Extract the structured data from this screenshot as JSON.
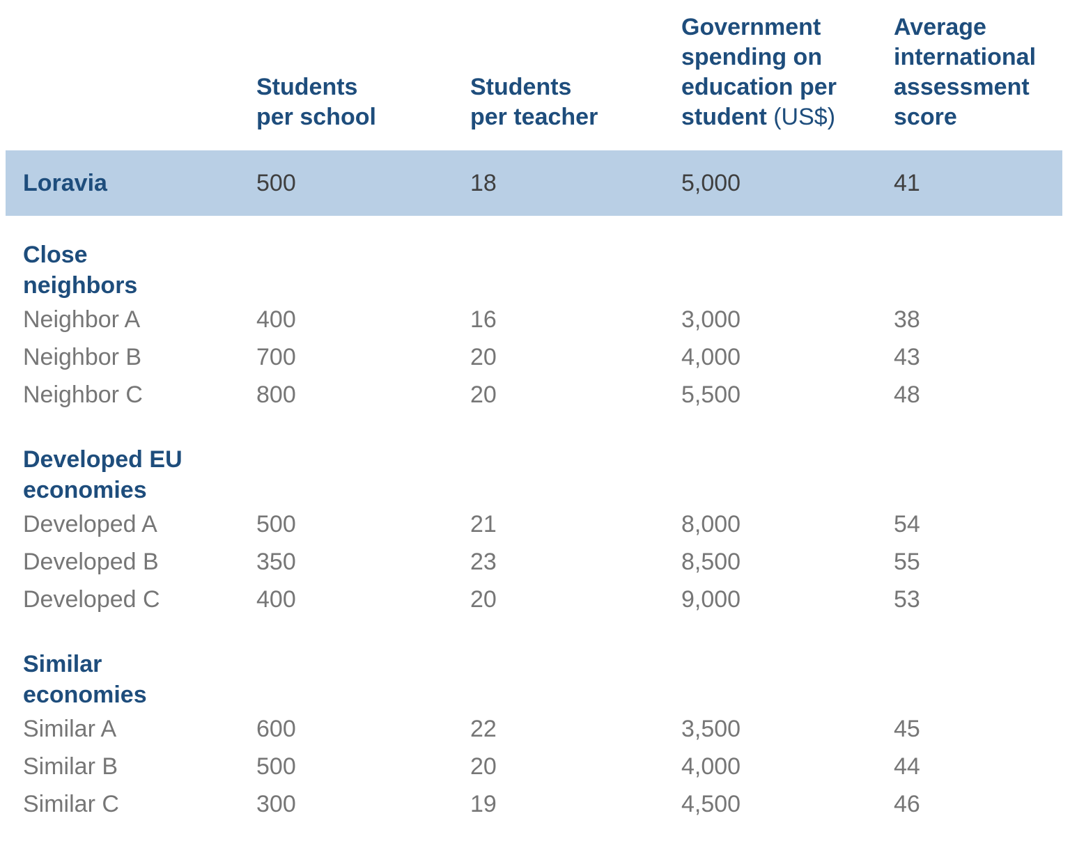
{
  "colors": {
    "navy_text": "#1e4d7c",
    "gray_text": "#767676",
    "highlight_row_bg": "#b9cfe5",
    "highlight_value_text": "#3f3f3f",
    "page_bg": "#ffffff"
  },
  "table": {
    "header": {
      "students_per_school": "Students\nper school",
      "students_per_teacher": "Students\nper teacher",
      "gov_spending_bold": "Government\nspending on\neducation per\nstudent",
      "gov_spending_unit": " (US$)",
      "assessment_score": "Average\ninternational\nassessment\nscore"
    },
    "highlight_row": {
      "label": "Loravia",
      "values": [
        "500",
        "18",
        "5,000",
        "41"
      ]
    },
    "sections": [
      {
        "title": "Close\nneighbors",
        "rows": [
          {
            "label": "Neighbor A",
            "values": [
              "400",
              "16",
              "3,000",
              "38"
            ]
          },
          {
            "label": "Neighbor B",
            "values": [
              "700",
              "20",
              "4,000",
              "43"
            ]
          },
          {
            "label": "Neighbor C",
            "values": [
              "800",
              "20",
              "5,500",
              "48"
            ]
          }
        ]
      },
      {
        "title": "Developed EU\neconomies",
        "rows": [
          {
            "label": "Developed A",
            "values": [
              "500",
              "21",
              "8,000",
              "54"
            ]
          },
          {
            "label": "Developed B",
            "values": [
              "350",
              "23",
              "8,500",
              "55"
            ]
          },
          {
            "label": "Developed C",
            "values": [
              "400",
              "20",
              "9,000",
              "53"
            ]
          }
        ]
      },
      {
        "title": "Similar\neconomies",
        "rows": [
          {
            "label": "Similar A",
            "values": [
              "600",
              "22",
              "3,500",
              "45"
            ]
          },
          {
            "label": "Similar B",
            "values": [
              "500",
              "20",
              "4,000",
              "44"
            ]
          },
          {
            "label": "Similar C",
            "values": [
              "300",
              "19",
              "4,500",
              "46"
            ]
          }
        ]
      }
    ]
  },
  "chart_data": {
    "type": "table",
    "title": "",
    "columns": [
      "",
      "Students per school",
      "Students per teacher",
      "Government spending on education per student (US$)",
      "Average international assessment score"
    ],
    "rows": [
      {
        "group": "",
        "label": "Loravia",
        "students_per_school": 500,
        "students_per_teacher": 18,
        "spending_per_student_usd": 5000,
        "assessment_score": 41,
        "highlighted": true
      },
      {
        "group": "Close neighbors",
        "label": "Neighbor A",
        "students_per_school": 400,
        "students_per_teacher": 16,
        "spending_per_student_usd": 3000,
        "assessment_score": 38
      },
      {
        "group": "Close neighbors",
        "label": "Neighbor B",
        "students_per_school": 700,
        "students_per_teacher": 20,
        "spending_per_student_usd": 4000,
        "assessment_score": 43
      },
      {
        "group": "Close neighbors",
        "label": "Neighbor C",
        "students_per_school": 800,
        "students_per_teacher": 20,
        "spending_per_student_usd": 5500,
        "assessment_score": 48
      },
      {
        "group": "Developed EU economies",
        "label": "Developed A",
        "students_per_school": 500,
        "students_per_teacher": 21,
        "spending_per_student_usd": 8000,
        "assessment_score": 54
      },
      {
        "group": "Developed EU economies",
        "label": "Developed B",
        "students_per_school": 350,
        "students_per_teacher": 23,
        "spending_per_student_usd": 8500,
        "assessment_score": 55
      },
      {
        "group": "Developed EU economies",
        "label": "Developed C",
        "students_per_school": 400,
        "students_per_teacher": 20,
        "spending_per_student_usd": 9000,
        "assessment_score": 53
      },
      {
        "group": "Similar economies",
        "label": "Similar A",
        "students_per_school": 600,
        "students_per_teacher": 22,
        "spending_per_student_usd": 3500,
        "assessment_score": 45
      },
      {
        "group": "Similar economies",
        "label": "Similar B",
        "students_per_school": 500,
        "students_per_teacher": 20,
        "spending_per_student_usd": 4000,
        "assessment_score": 44
      },
      {
        "group": "Similar economies",
        "label": "Similar C",
        "students_per_school": 300,
        "students_per_teacher": 19,
        "spending_per_student_usd": 4500,
        "assessment_score": 46
      }
    ]
  }
}
